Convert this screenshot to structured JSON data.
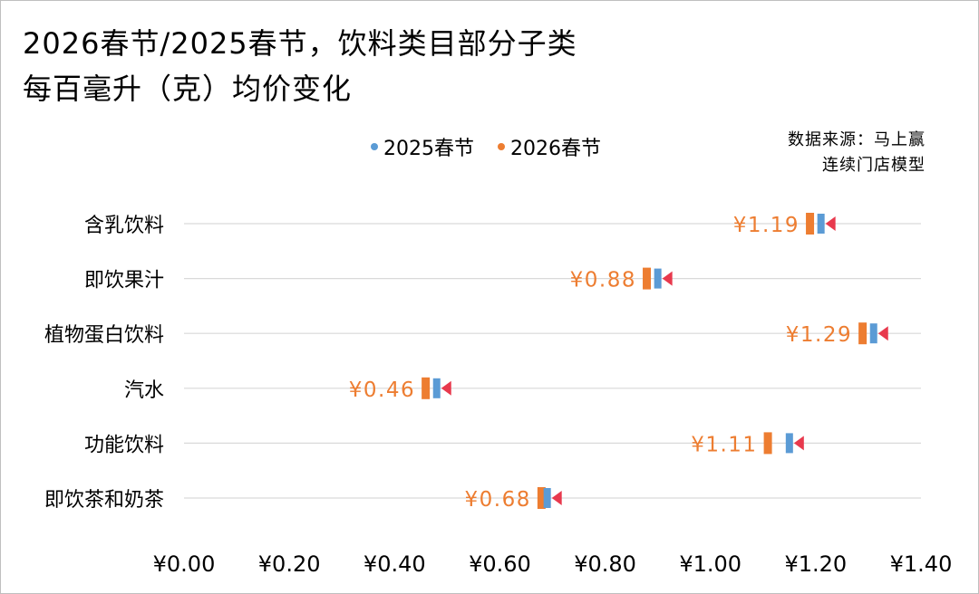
{
  "chart_data": {
    "type": "dot",
    "title_lines": [
      "2026春节/2025春节，饮料类目部分子类",
      "每百毫升（克）均价变化"
    ],
    "source_lines": [
      "数据来源：马上赢",
      "连续门店模型"
    ],
    "categories": [
      "含乳饮料",
      "即饮果汁",
      "植物蛋白饮料",
      "汽水",
      "功能饮料",
      "即饮茶和奶茶"
    ],
    "series": [
      {
        "name": "2025春节",
        "color": "#5B9BD5",
        "values": [
          1.21,
          0.9,
          1.31,
          0.48,
          1.15,
          0.69
        ]
      },
      {
        "name": "2026春节",
        "color": "#ED7D31",
        "values": [
          1.19,
          0.88,
          1.29,
          0.46,
          1.11,
          0.68
        ]
      }
    ],
    "data_labels": [
      "¥1.19",
      "¥0.88",
      "¥1.29",
      "¥0.46",
      "¥1.11",
      "¥0.68"
    ],
    "arrow_color": "#E8394D",
    "x_ticks": [
      "¥0.00",
      "¥0.20",
      "¥0.40",
      "¥0.60",
      "¥0.80",
      "¥1.00",
      "¥1.20",
      "¥1.40"
    ],
    "xlim": [
      0,
      1.4
    ],
    "grid": true,
    "legend_position": "top-center"
  }
}
